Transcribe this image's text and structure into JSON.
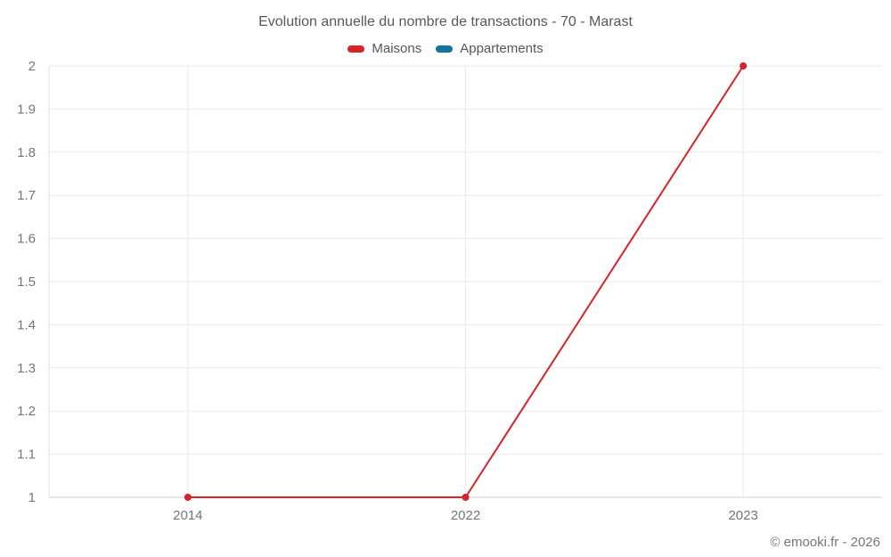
{
  "header": {
    "title": "Evolution annuelle du nombre de transactions - 70 - Marast"
  },
  "legend": {
    "items": [
      {
        "label": "Maisons",
        "color": "#d8232a"
      },
      {
        "label": "Appartements",
        "color": "#17719f"
      }
    ]
  },
  "footer": {
    "credit": "© emooki.fr - 2026"
  },
  "colors": {
    "maisons": "#d8232a",
    "appartements": "#17719f",
    "gridline": "#ebebeb",
    "baseline": "#d2d2d2",
    "axis_line": "#e3e3e3",
    "tick_label": "#75757a"
  },
  "chart_data": {
    "type": "line",
    "title": "Evolution annuelle du nombre de transactions - 70 - Marast",
    "categories": [
      "2014",
      "2022",
      "2023"
    ],
    "series": [
      {
        "name": "Maisons",
        "color": "#d8232a",
        "values": [
          1,
          1,
          2
        ]
      },
      {
        "name": "Appartements",
        "color": "#17719f",
        "values": []
      }
    ],
    "xlabel": "",
    "ylabel": "",
    "ylim": [
      1,
      2
    ],
    "yticks": [
      1,
      1.1,
      1.2,
      1.3,
      1.4,
      1.5,
      1.6,
      1.7,
      1.8,
      1.9,
      2
    ],
    "grid": true,
    "legend_position": "top",
    "marker_radius": 4,
    "line_width": 2
  }
}
